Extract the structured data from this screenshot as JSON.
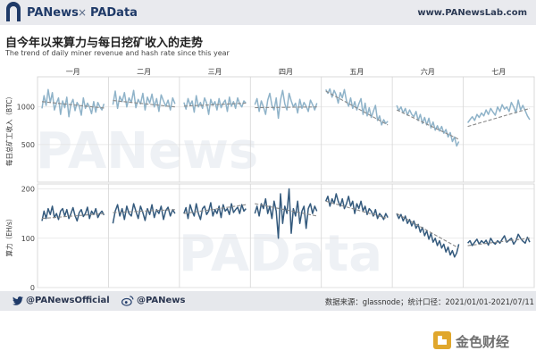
{
  "header": {
    "brand_left": "PANews",
    "separator": "×",
    "brand_right": "PAData",
    "website": "www.PANewsLab.com"
  },
  "title": "自今年以来算力与每日挖矿收入的走势",
  "subtitle": "The trend of daily miner revenue and hash rate since this year",
  "watermarks": [
    "PANews",
    "PAData"
  ],
  "footer": {
    "twitter_handle": "@PANewsOfficial",
    "weibo_handle": "@PANews",
    "source_text": "数据来源：glassnode；统计口径：2021/01/01-2021/07/11"
  },
  "corner_badge": {
    "text": "金色财经"
  },
  "colors": {
    "revenue_line": "#8fb3c9",
    "hash_line": "#345a7d",
    "trend": "#888888",
    "grid": "#e4e4e4",
    "brand": "#1f3a68"
  },
  "icons": [
    "twitter-icon",
    "weibo-icon",
    "panews-logo-icon",
    "jinse-logo-icon"
  ],
  "chart_data": {
    "type": "line",
    "months": [
      "一月",
      "二月",
      "三月",
      "四月",
      "五月",
      "六月",
      "七月"
    ],
    "panels": [
      {
        "name": "revenue",
        "ylabel": "每日总矿工收入（BTC）",
        "yticks": [
          500,
          1000
        ],
        "ylim": [
          0,
          1400
        ],
        "color": "#8fb3c9",
        "series": [
          [
            980,
            1150,
            1020,
            1230,
            1060,
            1190,
            960,
            1050,
            1120,
            900,
            1080,
            990,
            1130,
            870,
            1040,
            1100,
            950,
            1060,
            1010,
            890,
            1120,
            980,
            1050,
            1000,
            910,
            1070,
            930,
            1060,
            1000,
            960,
            1040
          ],
          [
            1030,
            1210,
            980,
            1140,
            1070,
            1190,
            1000,
            1120,
            1060,
            1220,
            990,
            1100,
            1040,
            1180,
            960,
            1130,
            1050,
            1170,
            1000,
            1110,
            940,
            1160,
            1080,
            1010,
            1090,
            960,
            1120,
            1040
          ],
          [
            1060,
            970,
            1110,
            1020,
            1080,
            930,
            1150,
            1000,
            1060,
            980,
            1120,
            1050,
            900,
            1100,
            1020,
            1070,
            960,
            1110,
            990,
            1050,
            1090,
            940,
            1130,
            1010,
            1070,
            980,
            1120,
            1040,
            1000,
            1080,
            1050
          ],
          [
            1030,
            1110,
            940,
            1080,
            1000,
            900,
            1090,
            1180,
            1020,
            960,
            1120,
            850,
            1090,
            1220,
            1040,
            960,
            1180,
            1080,
            1000,
            1050,
            920,
            1100,
            980,
            1060,
            1010,
            940,
            1090,
            1030,
            960,
            1050
          ],
          [
            1230,
            1180,
            1240,
            1130,
            1220,
            1160,
            1050,
            1190,
            1120,
            1230,
            1080,
            1010,
            1120,
            980,
            1070,
            960,
            1040,
            1110,
            900,
            1050,
            880,
            990,
            860,
            940,
            1020,
            820,
            880,
            760,
            830,
            780,
            810
          ],
          [
            1020,
            950,
            1000,
            920,
            980,
            890,
            960,
            900,
            870,
            940,
            820,
            900,
            780,
            860,
            760,
            850,
            720,
            800,
            690,
            750,
            680,
            740,
            650,
            700,
            600,
            660,
            540,
            600,
            480,
            540
          ],
          [
            790,
            830,
            870,
            820,
            900,
            860,
            920,
            880,
            960,
            900,
            980,
            930,
            890,
            1000,
            940,
            1030,
            970,
            1000,
            940,
            1060,
            1000,
            920,
            1090,
            960,
            1020,
            950,
            880,
            830
          ]
        ],
        "trend": [
          [
            1070,
            985
          ],
          [
            1085,
            1000
          ],
          [
            1010,
            1050
          ],
          [
            990,
            1000
          ],
          [
            1210,
            760
          ],
          [
            960,
            570
          ],
          [
            740,
            980
          ]
        ]
      },
      {
        "name": "hashrate",
        "ylabel": "算力（EH/s）",
        "yticks": [
          0,
          100,
          200
        ],
        "ylim": [
          0,
          210
        ],
        "color": "#345a7d",
        "series": [
          [
            135,
            155,
            140,
            160,
            148,
            165,
            142,
            150,
            138,
            155,
            160,
            145,
            158,
            140,
            150,
            162,
            146,
            135,
            152,
            158,
            144,
            150,
            163,
            140,
            155,
            148,
            160,
            142,
            150,
            155,
            147
          ],
          [
            130,
            155,
            168,
            145,
            160,
            138,
            165,
            150,
            145,
            170,
            155,
            140,
            165,
            152,
            136,
            160,
            148,
            168,
            142,
            158,
            150,
            165,
            138,
            156,
            163,
            145,
            158,
            150
          ],
          [
            150,
            162,
            140,
            168,
            155,
            145,
            170,
            150,
            138,
            160,
            165,
            148,
            155,
            172,
            145,
            158,
            150,
            165,
            142,
            168,
            155,
            160,
            148,
            170,
            152,
            158,
            163,
            150,
            168,
            155,
            160
          ],
          [
            150,
            165,
            145,
            170,
            160,
            180,
            150,
            165,
            140,
            175,
            155,
            100,
            190,
            130,
            165,
            150,
            200,
            110,
            160,
            145,
            175,
            130,
            155,
            165,
            120,
            160,
            170,
            150,
            165,
            155
          ],
          [
            175,
            185,
            165,
            180,
            170,
            190,
            175,
            165,
            180,
            160,
            170,
            185,
            165,
            175,
            150,
            170,
            160,
            175,
            155,
            165,
            148,
            160,
            155,
            145,
            158,
            140,
            150,
            145,
            138,
            150,
            142
          ],
          [
            150,
            140,
            148,
            135,
            145,
            130,
            138,
            125,
            135,
            120,
            128,
            112,
            122,
            105,
            115,
            98,
            110,
            92,
            100,
            85,
            95,
            80,
            88,
            72,
            82,
            66,
            75,
            62,
            70,
            88
          ],
          [
            90,
            95,
            85,
            92,
            98,
            88,
            95,
            90,
            96,
            86,
            100,
            92,
            88,
            95,
            90,
            98,
            105,
            92,
            96,
            100,
            88,
            95,
            108,
            100,
            94,
            90,
            102,
            92
          ]
        ],
        "trend": [
          [
            140,
            150
          ],
          [
            152,
            158
          ],
          [
            150,
            168
          ],
          [
            170,
            145
          ],
          [
            175,
            140
          ],
          [
            150,
            80
          ],
          [
            85,
            100
          ]
        ]
      }
    ]
  }
}
